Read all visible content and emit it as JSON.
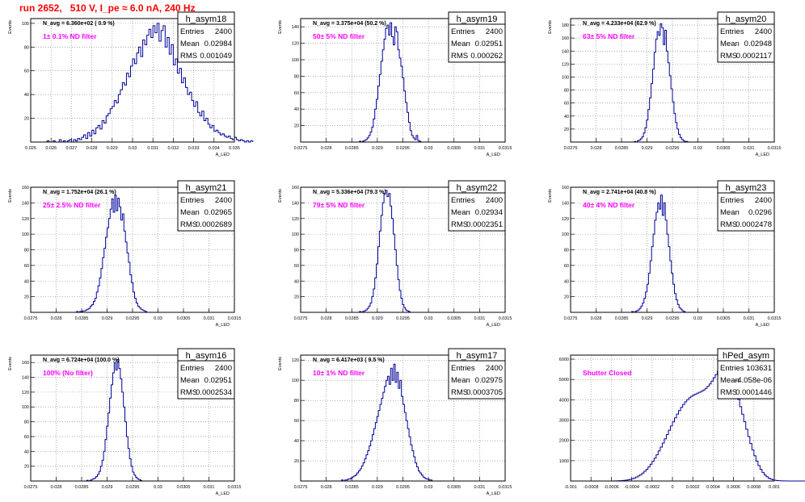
{
  "run_title": "run 2652,   510 V, I_pe ≈ 6.0 nA, 240 Hz",
  "colors": {
    "title": "#ff0000",
    "histogram": "#000099",
    "annotation": "#ff00ff",
    "grid": "#7f7f7f"
  },
  "stats_labels": {
    "entries": "Entries",
    "mean": "Mean",
    "rms": "RMS"
  },
  "chart_data": [
    {
      "type": "bar",
      "name": "h_asym18",
      "annotation": "N_avg = 6.360e+02 ( 0.9 %)",
      "filter_label": "1± 0.1% ND filter",
      "stats": {
        "entries": "2400",
        "mean": "0.02984",
        "rms": "0.001049"
      },
      "xlabel": "A_LED",
      "ylabel": "Events",
      "xlim": [
        0.025,
        0.035
      ],
      "ylim": [
        0,
        104
      ],
      "xticks": [
        "0.025",
        "0.026",
        "0.027",
        "0.028",
        "0.029",
        "0.03",
        "0.031",
        "0.032",
        "0.033",
        "0.034",
        "0.035"
      ],
      "yticks": [
        "20",
        "40",
        "60",
        "80",
        "100"
      ],
      "bin_start": 0.0258,
      "bin_width": 0.0001,
      "values": [
        1,
        0,
        0,
        1,
        0,
        0,
        2,
        0,
        1,
        0,
        1,
        2,
        0,
        2,
        1,
        3,
        2,
        4,
        6,
        3,
        8,
        5,
        10,
        7,
        12,
        14,
        11,
        18,
        16,
        22,
        24,
        28,
        30,
        35,
        33,
        40,
        44,
        50,
        48,
        58,
        55,
        64,
        70,
        66,
        75,
        80,
        72,
        86,
        82,
        90,
        95,
        88,
        98,
        92,
        100,
        85,
        94,
        98,
        80,
        88,
        74,
        82,
        65,
        70,
        58,
        62,
        50,
        54,
        46,
        40,
        42,
        35,
        30,
        34,
        25,
        22,
        26,
        18,
        20,
        15,
        12,
        14,
        9,
        10,
        8,
        6,
        7,
        5,
        4,
        5,
        3,
        2,
        4,
        2,
        1,
        2,
        1,
        0,
        1,
        0,
        1
      ]
    },
    {
      "type": "bar",
      "name": "h_asym19",
      "annotation": "N_avg = 3.375e+04 (50.2 %)",
      "filter_label": "50± 5% ND filter",
      "stats": {
        "entries": "2400",
        "mean": "0.02951",
        "rms": "0.000262"
      },
      "xlabel": "A_LED",
      "ylabel": "Events",
      "xlim": [
        0.0275,
        0.0315
      ],
      "ylim": [
        0,
        150
      ],
      "xticks": [
        "0.0275",
        "0.028",
        "0.0285",
        "0.029",
        "0.0295",
        "0.03",
        "0.0305",
        "0.031",
        "0.0315"
      ],
      "yticks": [
        "20",
        "40",
        "60",
        "80",
        "100",
        "120",
        "140"
      ],
      "bin_start": 0.02865,
      "bin_width": 3e-05,
      "values": [
        1,
        0,
        1,
        2,
        3,
        5,
        8,
        12,
        18,
        28,
        40,
        52,
        68,
        82,
        98,
        112,
        125,
        138,
        142,
        130,
        145,
        128,
        118,
        140,
        134,
        112,
        102,
        92,
        78,
        62,
        48,
        36,
        24,
        14,
        8,
        5,
        3,
        8,
        2,
        1
      ]
    },
    {
      "type": "bar",
      "name": "h_asym20",
      "annotation": "N_avg = 4.233e+04 (62.9 %)",
      "filter_label": "63± 5% ND filter",
      "stats": {
        "entries": "2400",
        "mean": "0.02948",
        "rms": "0.0002117"
      },
      "xlabel": "A_LED",
      "ylabel": "Events",
      "xlim": [
        0.0275,
        0.0315
      ],
      "ylim": [
        0,
        190
      ],
      "xticks": [
        "0.0275",
        "0.028",
        "0.0285",
        "0.029",
        "0.0295",
        "0.03",
        "0.0305",
        "0.031",
        "0.0315"
      ],
      "yticks": [
        "20",
        "40",
        "60",
        "80",
        "100",
        "120",
        "140",
        "160",
        "180"
      ],
      "bin_start": 0.02875,
      "bin_width": 3e-05,
      "values": [
        1,
        0,
        2,
        3,
        5,
        8,
        14,
        22,
        34,
        50,
        68,
        90,
        112,
        138,
        158,
        170,
        164,
        182,
        176,
        150,
        172,
        140,
        122,
        102,
        82,
        62,
        44,
        30,
        20,
        12,
        7,
        4,
        2,
        1,
        1
      ]
    },
    {
      "type": "bar",
      "name": "h_asym21",
      "annotation": "N_avg = 1.752e+04 (26.1 %)",
      "filter_label": "25± 2.5% ND filter",
      "stats": {
        "entries": "2400",
        "mean": "0.02965",
        "rms": "0.0002689"
      },
      "xlabel": "A_LED",
      "ylabel": "Events",
      "xlim": [
        0.0275,
        0.0315
      ],
      "ylim": [
        0,
        160
      ],
      "xticks": [
        "0.0275",
        "0.028",
        "0.0285",
        "0.029",
        "0.0295",
        "0.03",
        "0.0305",
        "0.031",
        "0.0315"
      ],
      "yticks": [
        "20",
        "40",
        "60",
        "80",
        "100",
        "120",
        "140",
        "160"
      ],
      "bin_start": 0.0284,
      "bin_width": 3e-05,
      "values": [
        1,
        0,
        1,
        1,
        2,
        2,
        3,
        4,
        5,
        8,
        10,
        14,
        18,
        26,
        34,
        44,
        56,
        70,
        82,
        96,
        108,
        120,
        132,
        145,
        128,
        150,
        130,
        146,
        135,
        118,
        126,
        104,
        90,
        76,
        64,
        48,
        38,
        26,
        18,
        12,
        8,
        6,
        4,
        3,
        2,
        1
      ]
    },
    {
      "type": "bar",
      "name": "h_asym22",
      "annotation": "N_avg = 5.336e+04 (79.3 %)",
      "filter_label": "79± 5% ND filter",
      "stats": {
        "entries": "2400",
        "mean": "0.02934",
        "rms": "0.0002351"
      },
      "xlabel": "A_LED",
      "ylabel": "Events",
      "xlim": [
        0.0275,
        0.0315
      ],
      "ylim": [
        0,
        160
      ],
      "xticks": [
        "0.0275",
        "0.028",
        "0.0285",
        "0.029",
        "0.0295",
        "0.03",
        "0.0305",
        "0.031",
        "0.0315"
      ],
      "yticks": [
        "20",
        "40",
        "60",
        "80",
        "100",
        "120",
        "140",
        "160"
      ],
      "bin_start": 0.02865,
      "bin_width": 3e-05,
      "values": [
        1,
        0,
        1,
        2,
        3,
        5,
        8,
        12,
        20,
        30,
        44,
        62,
        84,
        104,
        124,
        140,
        152,
        156,
        148,
        152,
        136,
        120,
        100,
        80,
        60,
        42,
        28,
        18,
        10,
        6,
        3,
        2,
        1
      ]
    },
    {
      "type": "bar",
      "name": "h_asym23",
      "annotation": "N_avg = 2.741e+04 (40.8 %)",
      "filter_label": "40± 4% ND filter",
      "stats": {
        "entries": "2400",
        "mean": "0.0296",
        "rms": "0.0002478"
      },
      "xlabel": "A_LED",
      "ylabel": "Events",
      "xlim": [
        0.0275,
        0.0315
      ],
      "ylim": [
        0,
        160
      ],
      "xticks": [
        "0.0275",
        "0.028",
        "0.0285",
        "0.029",
        "0.0295",
        "0.03",
        "0.0305",
        "0.031",
        "0.0315"
      ],
      "yticks": [
        "20",
        "40",
        "60",
        "80",
        "100",
        "120",
        "140",
        "160"
      ],
      "bin_start": 0.0287,
      "bin_width": 3e-05,
      "values": [
        1,
        0,
        1,
        2,
        3,
        5,
        8,
        12,
        18,
        26,
        36,
        50,
        66,
        84,
        100,
        118,
        128,
        140,
        132,
        150,
        124,
        140,
        118,
        100,
        84,
        66,
        50,
        36,
        24,
        16,
        10,
        6,
        4,
        2,
        1
      ]
    },
    {
      "type": "bar",
      "name": "h_asym16",
      "annotation": "N_avg = 6.724e+04 (100.0 %)",
      "filter_label": "100% (No filter)",
      "stats": {
        "entries": "2400",
        "mean": "0.02951",
        "rms": "0.0002534"
      },
      "xlabel": "A_LED",
      "ylabel": "Events",
      "xlim": [
        0.0275,
        0.0315
      ],
      "ylim": [
        0,
        170
      ],
      "xticks": [
        "0.0275",
        "0.028",
        "0.0285",
        "0.029",
        "0.0295",
        "0.03",
        "0.0305",
        "0.031",
        "0.0315"
      ],
      "yticks": [
        "20",
        "40",
        "60",
        "80",
        "100",
        "120",
        "140",
        "160"
      ],
      "bin_start": 0.0286,
      "bin_width": 3e-05,
      "values": [
        1,
        0,
        1,
        2,
        3,
        4,
        6,
        9,
        13,
        20,
        28,
        40,
        56,
        74,
        92,
        112,
        130,
        146,
        160,
        150,
        164,
        152,
        138,
        120,
        100,
        80,
        60,
        44,
        30,
        20,
        12,
        8,
        5,
        3,
        2,
        1
      ]
    },
    {
      "type": "bar",
      "name": "h_asym17",
      "annotation": "N_avg = 6.417e+03 ( 9.5 %)",
      "filter_label": "10± 1% ND filter",
      "stats": {
        "entries": "2400",
        "mean": "0.02975",
        "rms": "0.0003705"
      },
      "xlabel": "A_LED",
      "ylabel": "Events",
      "xlim": [
        0.0275,
        0.0315
      ],
      "ylim": [
        0,
        125
      ],
      "xticks": [
        "0.0275",
        "0.028",
        "0.0285",
        "0.029",
        "0.0295",
        "0.03",
        "0.0305",
        "0.031",
        "0.0315"
      ],
      "yticks": [
        "20",
        "40",
        "60",
        "80",
        "100",
        "120"
      ],
      "bin_start": 0.0283,
      "bin_width": 3e-05,
      "values": [
        1,
        0,
        1,
        1,
        2,
        2,
        3,
        4,
        5,
        6,
        8,
        10,
        12,
        15,
        18,
        22,
        26,
        30,
        35,
        40,
        46,
        52,
        58,
        64,
        70,
        76,
        82,
        88,
        94,
        100,
        104,
        96,
        112,
        100,
        116,
        98,
        108,
        92,
        100,
        84,
        76,
        68,
        60,
        52,
        44,
        36,
        30,
        24,
        18,
        14,
        10,
        8,
        6,
        4,
        3,
        2,
        2,
        1,
        1
      ]
    },
    {
      "type": "bar",
      "name": "hPed_asym",
      "annotation": "",
      "filter_label": "Shutter Closed",
      "stats": {
        "entries": "103631",
        "mean": "-4.058e-06",
        "rms": "0.0001446"
      },
      "xlabel": "",
      "ylabel": "",
      "xlim": [
        -0.001,
        0.001
      ],
      "ylim": [
        0,
        6200
      ],
      "xticks": [
        "-0.001",
        "-0.0008",
        "-0.0006",
        "-0.0004",
        "-0.0002",
        "0",
        "0.0002",
        "0.0004",
        "0.0006",
        "0.0008",
        "0.001"
      ],
      "yticks": [
        "1000",
        "2000",
        "3000",
        "4000",
        "5000",
        "6000"
      ],
      "bin_start": -0.0006,
      "bin_width": 2e-05,
      "values": [
        2,
        4,
        6,
        10,
        15,
        22,
        32,
        45,
        62,
        84,
        112,
        148,
        192,
        246,
        310,
        386,
        475,
        578,
        694,
        824,
        968,
        1126,
        1296,
        1478,
        1670,
        1870,
        2076,
        2286,
        2498,
        2708,
        2912,
        3108,
        3294,
        3468,
        3628,
        3772,
        3898,
        4006,
        4098,
        4172,
        4232,
        4282,
        4326,
        4370,
        4420,
        4480,
        4560,
        4660,
        4780,
        4920,
        5080,
        5240,
        5400,
        5540,
        5660,
        5740,
        5640,
        5480,
        5260,
        5000,
        4700,
        4370,
        4020,
        3660,
        3290,
        2920,
        2550,
        2190,
        1850,
        1530,
        1240,
        980,
        760,
        570,
        420,
        300,
        210,
        140,
        92,
        58,
        36,
        22,
        13,
        8,
        5,
        3,
        2,
        1,
        1,
        0,
        1,
        0,
        0,
        1,
        0,
        0,
        0,
        0,
        0,
        0
      ]
    }
  ]
}
